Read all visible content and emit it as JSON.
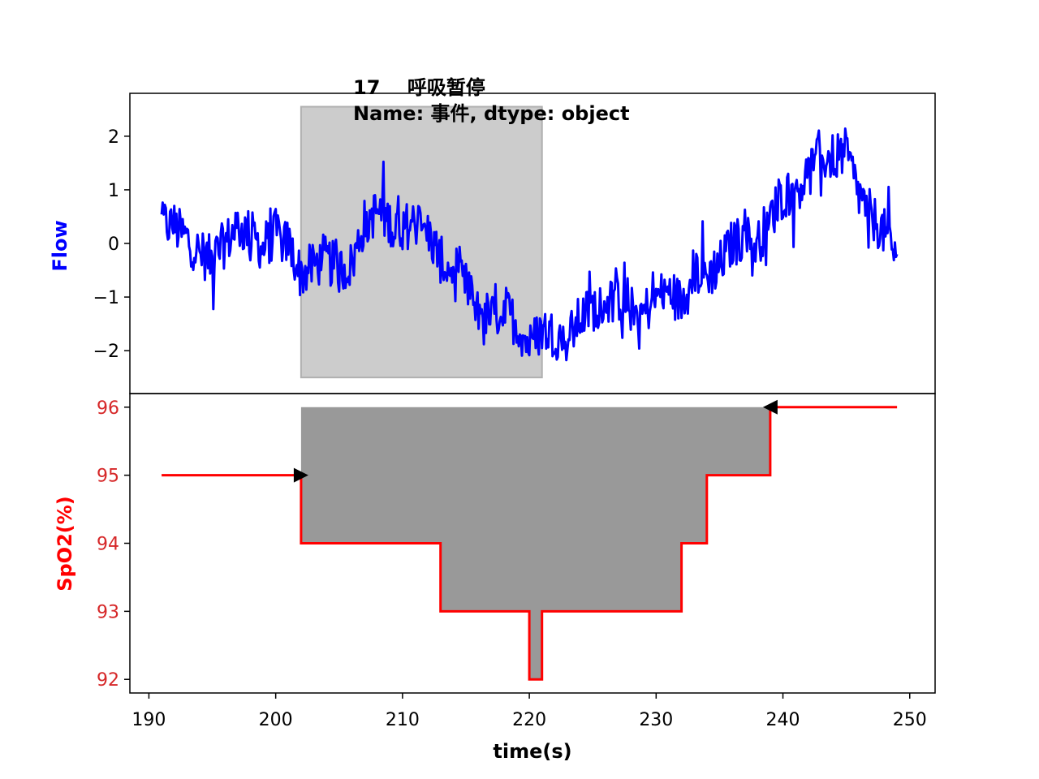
{
  "chart_data": [
    {
      "type": "line",
      "title_lines": [
        "17    呼吸暂停",
        "Name: 事件, dtype: object"
      ],
      "ylabel": "Flow",
      "ylabel_color": "#0000ff",
      "line_color": "#0000ff",
      "xlim": [
        188.5,
        252
      ],
      "ylim": [
        -2.8,
        2.8
      ],
      "yticks": [
        2,
        1,
        0,
        -1,
        -2
      ],
      "ytick_labels": [
        "2",
        "1",
        "0",
        "−1",
        "−2"
      ],
      "shaded_region": {
        "x0": 202,
        "x1": 221,
        "y0": -2.5,
        "y1": 2.55,
        "color": "#cccccc"
      },
      "series": [
        {
          "x": [
            191,
            192,
            193,
            194,
            195,
            196,
            197,
            198,
            199,
            200,
            201,
            202,
            203,
            204,
            205,
            206,
            207,
            208,
            209,
            210,
            211,
            212,
            213,
            214,
            215,
            216,
            217,
            218,
            219,
            220,
            221,
            222,
            223,
            224,
            225,
            226,
            227,
            228,
            229,
            230,
            231,
            232,
            233,
            234,
            235,
            236,
            237,
            238,
            239,
            240,
            241,
            242,
            243,
            244,
            245,
            246,
            247,
            248,
            249
          ],
          "y": [
            0.4,
            0.3,
            0.1,
            -0.2,
            -0.3,
            0.0,
            0.3,
            0.2,
            -0.1,
            0.2,
            0.0,
            -0.6,
            -0.4,
            -0.3,
            -0.5,
            -0.4,
            0.4,
            0.6,
            0.4,
            0.3,
            0.4,
            0.2,
            -0.3,
            -0.6,
            -0.8,
            -1.2,
            -1.4,
            -1.2,
            -1.5,
            -1.9,
            -1.6,
            -1.7,
            -1.8,
            -1.4,
            -1.2,
            -1.1,
            -1.0,
            -1.2,
            -1.3,
            -1.0,
            -0.9,
            -1.1,
            -0.5,
            -0.6,
            -0.4,
            0.0,
            0.1,
            0.0,
            0.5,
            0.9,
            1.0,
            1.3,
            1.6,
            1.6,
            1.7,
            0.9,
            0.5,
            0.2,
            -0.2
          ]
        }
      ]
    },
    {
      "type": "line",
      "ylabel": "SpO2(%)",
      "ylabel_color": "#ff0000",
      "tick_color": "#d62728",
      "line_color": "#ff0000",
      "fill_color": "#999999",
      "xlabel": "time(s)",
      "xlim": [
        188.5,
        252
      ],
      "ylim": [
        91.8,
        96.2
      ],
      "xticks": [
        190,
        200,
        210,
        220,
        230,
        240,
        250
      ],
      "xtick_labels": [
        "190",
        "200",
        "210",
        "220",
        "230",
        "240",
        "250"
      ],
      "yticks": [
        96,
        95,
        94,
        93,
        92
      ],
      "ytick_labels": [
        "96",
        "95",
        "94",
        "93",
        "92"
      ],
      "series": [
        {
          "x": [
            191,
            202,
            202,
            213,
            213,
            220,
            220,
            221,
            221,
            232,
            232,
            234,
            234,
            239,
            239,
            249
          ],
          "y": [
            95,
            95,
            94,
            94,
            93,
            93,
            92,
            92,
            93,
            93,
            94,
            94,
            95,
            95,
            96,
            96
          ]
        }
      ],
      "fill_region": {
        "x0": 202,
        "x1": 239,
        "top": 96
      },
      "markers": [
        {
          "x": 202,
          "y": 95,
          "direction": "right"
        },
        {
          "x": 239,
          "y": 96,
          "direction": "left"
        }
      ]
    }
  ]
}
